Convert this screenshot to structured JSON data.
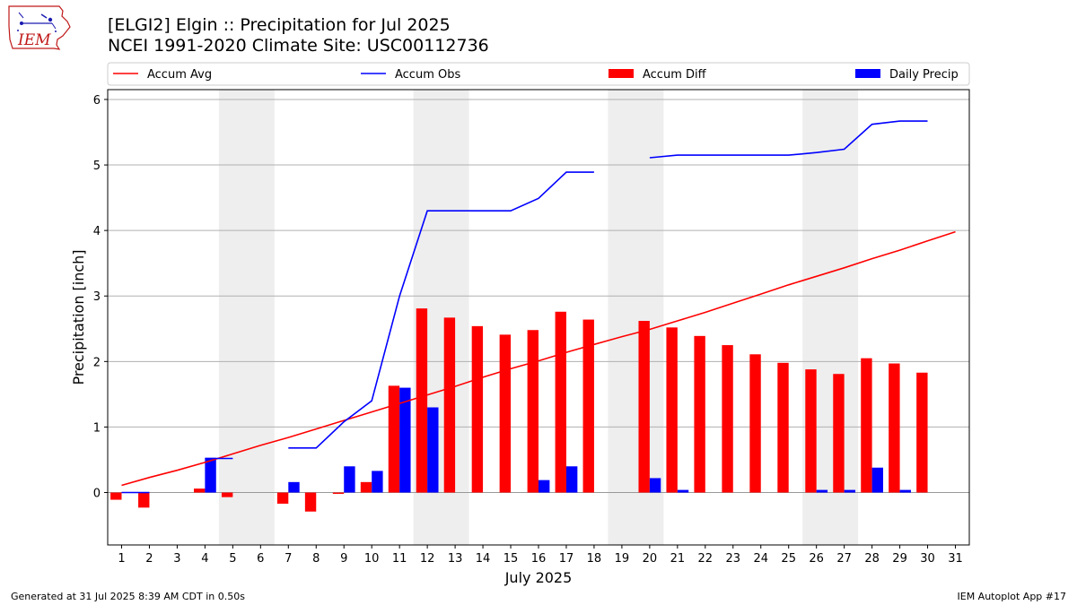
{
  "logo_text": "IEM",
  "title_line1": "[ELGI2] Elgin :: Precipitation for Jul 2025",
  "title_line2": "NCEI 1991-2020 Climate Site: USC00112736",
  "footer_left": "Generated at 31 Jul 2025 8:39 AM CDT in 0.50s",
  "footer_right": "IEM Autoplot App #17",
  "chart_data": {
    "type": "bar",
    "xlabel": "July 2025",
    "ylabel": "Precipitation [inch]",
    "xlim": [
      0.5,
      31.5
    ],
    "ylim": [
      -0.8,
      6.15
    ],
    "x_ticks": [
      1,
      2,
      3,
      4,
      5,
      6,
      7,
      8,
      9,
      10,
      11,
      12,
      13,
      14,
      15,
      16,
      17,
      18,
      19,
      20,
      21,
      22,
      23,
      24,
      25,
      26,
      27,
      28,
      29,
      30,
      31
    ],
    "y_ticks": [
      0,
      1,
      2,
      3,
      4,
      5,
      6
    ],
    "grid": "horizontal",
    "legend_position": "top",
    "weekend_shading_days": [
      [
        5,
        6
      ],
      [
        12,
        13
      ],
      [
        19,
        20
      ],
      [
        26,
        27
      ]
    ],
    "colors": {
      "accum_avg": "#ff0000",
      "accum_obs": "#0000ff",
      "accum_diff": "#ff0000",
      "daily_precip": "#0000ff",
      "weekend_shade": "#eeeeee",
      "grid": "#b0b0b0"
    },
    "series": [
      {
        "name": "Accum Avg",
        "kind": "line",
        "x": [
          1,
          2,
          3,
          4,
          5,
          6,
          7,
          8,
          9,
          10,
          11,
          12,
          13,
          14,
          15,
          16,
          17,
          18,
          19,
          20,
          21,
          22,
          23,
          24,
          25,
          26,
          27,
          28,
          29,
          30,
          31
        ],
        "values": [
          0.11,
          0.23,
          0.34,
          0.46,
          0.59,
          0.72,
          0.84,
          0.97,
          1.1,
          1.23,
          1.36,
          1.49,
          1.62,
          1.76,
          1.89,
          2.01,
          2.14,
          2.26,
          2.38,
          2.49,
          2.62,
          2.75,
          2.89,
          3.03,
          3.17,
          3.3,
          3.43,
          3.57,
          3.7,
          3.84,
          3.98
        ]
      },
      {
        "name": "Accum Obs",
        "kind": "line",
        "x": [
          1,
          2,
          3,
          4,
          5,
          6,
          7,
          8,
          9,
          10,
          11,
          12,
          13,
          14,
          15,
          16,
          17,
          18,
          19,
          20,
          21,
          22,
          23,
          24,
          25,
          26,
          27,
          28,
          29,
          30,
          31
        ],
        "values": [
          0.0,
          0.0,
          null,
          0.52,
          0.52,
          null,
          0.68,
          0.68,
          1.08,
          1.4,
          3.0,
          4.3,
          4.3,
          4.3,
          4.3,
          4.49,
          4.89,
          4.89,
          null,
          5.11,
          5.15,
          5.15,
          5.15,
          5.15,
          5.15,
          5.19,
          5.24,
          5.62,
          5.67,
          5.67,
          null
        ]
      },
      {
        "name": "Accum Diff",
        "kind": "bar",
        "x": [
          1,
          2,
          3,
          4,
          5,
          6,
          7,
          8,
          9,
          10,
          11,
          12,
          13,
          14,
          15,
          16,
          17,
          18,
          19,
          20,
          21,
          22,
          23,
          24,
          25,
          26,
          27,
          28,
          29,
          30,
          31
        ],
        "values": [
          -0.11,
          -0.23,
          null,
          0.06,
          -0.07,
          null,
          -0.17,
          -0.29,
          -0.02,
          0.16,
          1.63,
          2.81,
          2.67,
          2.54,
          2.41,
          2.48,
          2.76,
          2.64,
          null,
          2.62,
          2.52,
          2.39,
          2.25,
          2.11,
          1.98,
          1.88,
          1.81,
          2.05,
          1.97,
          1.83,
          null
        ]
      },
      {
        "name": "Daily Precip",
        "kind": "bar",
        "x": [
          1,
          2,
          3,
          4,
          5,
          6,
          7,
          8,
          9,
          10,
          11,
          12,
          13,
          14,
          15,
          16,
          17,
          18,
          19,
          20,
          21,
          22,
          23,
          24,
          25,
          26,
          27,
          28,
          29,
          30,
          31
        ],
        "values": [
          0.0,
          0.0,
          null,
          0.53,
          0.0,
          null,
          0.16,
          0.0,
          0.4,
          0.33,
          1.6,
          1.3,
          0.0,
          0.0,
          0.0,
          0.19,
          0.4,
          0.0,
          null,
          0.22,
          0.04,
          0.0,
          0.0,
          0.0,
          0.0,
          0.04,
          0.04,
          0.38,
          0.04,
          0.0,
          null
        ]
      }
    ]
  }
}
